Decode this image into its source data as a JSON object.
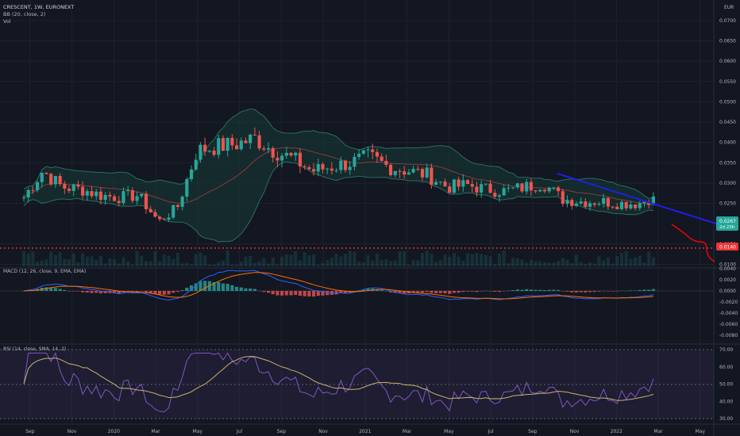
{
  "header": {
    "title": "CRESCENT, 1W, EURONEXT",
    "indicator_bb": "BB (20, close, 2)",
    "indicator_vol": "Vol",
    "currency": "EUR"
  },
  "price_axis": {
    "ticks": [
      "0.0700",
      "0.0650",
      "0.0600",
      "0.0550",
      "0.0500",
      "0.0450",
      "0.0400",
      "0.0350",
      "0.0300",
      "0.0250",
      "0.0150",
      "0.0100"
    ],
    "last_price": "0.0267",
    "last_time": "2d 23h",
    "support_label": "0.0140"
  },
  "macd": {
    "label": "MACD (12, 26, close, 9, EMA, EMA)",
    "ticks": [
      "0.0040",
      "0.0020",
      "0.0000",
      "-0.0020",
      "-0.0040",
      "-0.0060",
      "-0.0080"
    ]
  },
  "rsi": {
    "label": "RSI (14, close, SMA, 14, 2)",
    "ticks": [
      "70.00",
      "60.00",
      "50.00",
      "40.00",
      "30.00"
    ]
  },
  "time_axis": {
    "labels": [
      "Sep",
      "Nov",
      "2020",
      "Mar",
      "May",
      "Jul",
      "Sep",
      "Nov",
      "2021",
      "Mar",
      "May",
      "Jul",
      "Sep",
      "Nov",
      "2022",
      "Mar",
      "May"
    ]
  },
  "colors": {
    "bg": "#131722",
    "up": "#26a69a",
    "down": "#ef5350",
    "grid": "#1e222d",
    "bb_band": "#2b6e5f",
    "bb_fill": "#163a35",
    "trendline": "#1e1ee6",
    "forecast": "#ff0000",
    "macd_line": "#2962ff",
    "signal_line": "#ff6d00",
    "rsi_line": "#7e57c2",
    "rsi_ma": "#c8b46e"
  },
  "chart_data": {
    "type": "line",
    "title": "CRESCENT, 1W, EURONEXT",
    "xlabel": "",
    "ylabel": "EUR",
    "ylim": [
      0.0095,
      0.0735
    ],
    "x_range": [
      "2019-08",
      "2022-05"
    ],
    "approx_close": {
      "x": [
        "2019-08-26",
        "2019-09-23",
        "2019-10-21",
        "2019-11-18",
        "2019-12-16",
        "2020-01-13",
        "2020-02-10",
        "2020-03-09",
        "2020-04-06",
        "2020-05-04",
        "2020-06-01",
        "2020-06-29",
        "2020-07-27",
        "2020-08-24",
        "2020-09-21",
        "2020-10-19",
        "2020-11-16",
        "2020-12-14",
        "2021-01-11",
        "2021-02-08",
        "2021-03-08",
        "2021-04-05",
        "2021-05-03",
        "2021-05-31",
        "2021-06-28",
        "2021-07-26",
        "2021-08-23",
        "2021-09-20",
        "2021-10-18",
        "2021-11-15",
        "2021-12-13",
        "2022-01-10",
        "2022-02-07",
        "2022-02-28"
      ],
      "y": [
        0.0265,
        0.033,
        0.029,
        0.0285,
        0.027,
        0.0265,
        0.027,
        0.0205,
        0.024,
        0.038,
        0.039,
        0.0395,
        0.041,
        0.038,
        0.036,
        0.033,
        0.034,
        0.035,
        0.0365,
        0.034,
        0.033,
        0.032,
        0.029,
        0.0295,
        0.0285,
        0.028,
        0.029,
        0.03,
        0.026,
        0.0255,
        0.0255,
        0.025,
        0.025,
        0.0267
      ]
    },
    "trendline": {
      "x": [
        "2021-09-20",
        "2022-05-20"
      ],
      "y": [
        0.033,
        0.0215
      ]
    },
    "support_level": 0.014
  }
}
